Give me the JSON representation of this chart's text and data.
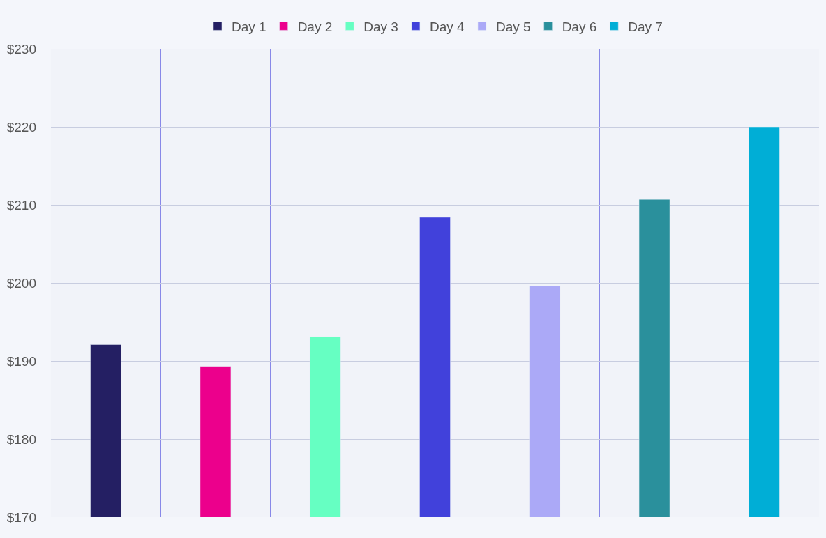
{
  "chart_data": {
    "type": "bar",
    "categories": [
      null,
      null,
      null,
      null,
      null,
      null,
      null
    ],
    "series": [
      {
        "name": "Day 1",
        "color": "#241f63",
        "values": [
          192.1,
          null,
          null,
          null,
          null,
          null,
          null
        ]
      },
      {
        "name": "Day 2",
        "color": "#ec008c",
        "values": [
          null,
          189.3,
          null,
          null,
          null,
          null,
          null
        ]
      },
      {
        "name": "Day 3",
        "color": "#66ffc2",
        "values": [
          null,
          null,
          193.1,
          null,
          null,
          null,
          null
        ]
      },
      {
        "name": "Day 4",
        "color": "#4141db",
        "values": [
          null,
          null,
          null,
          208.4,
          null,
          null,
          null
        ]
      },
      {
        "name": "Day 5",
        "color": "#aba9f7",
        "values": [
          null,
          null,
          null,
          null,
          199.6,
          null,
          null
        ]
      },
      {
        "name": "Day 6",
        "color": "#2a909c",
        "values": [
          null,
          null,
          null,
          null,
          null,
          210.7,
          null
        ]
      },
      {
        "name": "Day 7",
        "color": "#00aed6",
        "values": [
          null,
          null,
          null,
          null,
          null,
          null,
          220
        ]
      }
    ],
    "ylim": [
      170,
      230
    ],
    "yticks": [
      {
        "value": 170,
        "label": "$170"
      },
      {
        "value": 180,
        "label": "$180"
      },
      {
        "value": 190,
        "label": "$190"
      },
      {
        "value": 200,
        "label": "$200"
      },
      {
        "value": 210,
        "label": "$210"
      },
      {
        "value": 220,
        "label": "$220"
      },
      {
        "value": 230,
        "label": "$230"
      }
    ],
    "grid": true,
    "legend": "top",
    "tick_labels": "y"
  }
}
